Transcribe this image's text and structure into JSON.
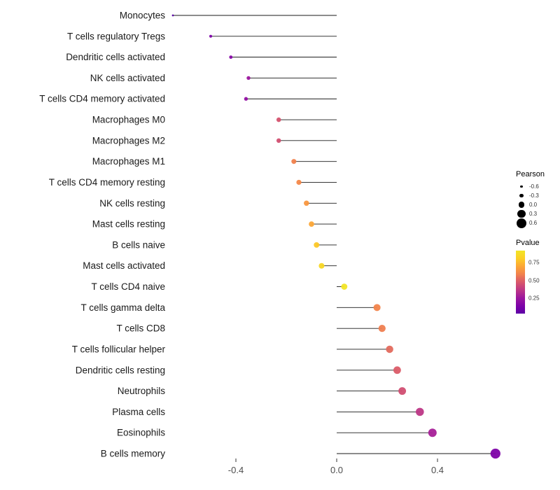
{
  "chart_data": {
    "type": "scatter",
    "subtype": "lollipop",
    "title": "",
    "xlabel": "",
    "ylabel": "",
    "xlim": [
      -0.68,
      0.7
    ],
    "grid": false,
    "x_ticks": [
      -0.4,
      0.0,
      0.4
    ],
    "x_tick_labels": [
      "-0.4",
      "0.0",
      "0.4"
    ],
    "points": [
      {
        "label": "Monocytes",
        "pearson": -0.65,
        "pvalue": 0.05,
        "color": "#5601a4"
      },
      {
        "label": "T cells regulatory  Tregs",
        "pearson": -0.5,
        "pvalue": 0.1,
        "color": "#7e03a8"
      },
      {
        "label": "Dendritic cells activated",
        "pearson": -0.42,
        "pvalue": 0.13,
        "color": "#8606a6"
      },
      {
        "label": "NK cells activated",
        "pearson": -0.35,
        "pvalue": 0.17,
        "color": "#9c179e"
      },
      {
        "label": "T cells CD4 memory activated",
        "pearson": -0.36,
        "pvalue": 0.15,
        "color": "#920fa3"
      },
      {
        "label": "Macrophages M0",
        "pearson": -0.23,
        "pvalue": 0.46,
        "color": "#d5536f"
      },
      {
        "label": "Macrophages M2",
        "pearson": -0.23,
        "pvalue": 0.45,
        "color": "#d24f71"
      },
      {
        "label": "Macrophages M1",
        "pearson": -0.17,
        "pvalue": 0.6,
        "color": "#f1814d"
      },
      {
        "label": "T cells CD4 memory resting",
        "pearson": -0.15,
        "pvalue": 0.62,
        "color": "#f48849"
      },
      {
        "label": "NK cells resting",
        "pearson": -0.12,
        "pvalue": 0.66,
        "color": "#f9973f"
      },
      {
        "label": "Mast cells resting",
        "pearson": -0.1,
        "pvalue": 0.71,
        "color": "#fca636"
      },
      {
        "label": "B cells naive",
        "pearson": -0.08,
        "pvalue": 0.78,
        "color": "#fcc726"
      },
      {
        "label": "Mast cells activated",
        "pearson": -0.06,
        "pvalue": 0.81,
        "color": "#f8d724"
      },
      {
        "label": "T cells CD4 naive",
        "pearson": 0.03,
        "pvalue": 0.86,
        "color": "#f2e526"
      },
      {
        "label": "T cells gamma delta",
        "pearson": 0.16,
        "pvalue": 0.61,
        "color": "#f2844b"
      },
      {
        "label": "T cells CD8",
        "pearson": 0.18,
        "pvalue": 0.58,
        "color": "#ef7e50"
      },
      {
        "label": "T cells follicular helper",
        "pearson": 0.21,
        "pvalue": 0.52,
        "color": "#e36a5d"
      },
      {
        "label": "Dendritic cells resting",
        "pearson": 0.24,
        "pvalue": 0.48,
        "color": "#db5c68"
      },
      {
        "label": "Neutrophils",
        "pearson": 0.26,
        "pvalue": 0.44,
        "color": "#d14e72"
      },
      {
        "label": "Plasma cells",
        "pearson": 0.33,
        "pvalue": 0.35,
        "color": "#bd3786"
      },
      {
        "label": "Eosinophils",
        "pearson": 0.38,
        "pvalue": 0.25,
        "color": "#a62098"
      },
      {
        "label": "B cells memory",
        "pearson": 0.63,
        "pvalue": 0.08,
        "color": "#7e03a8"
      }
    ],
    "legend": {
      "size": {
        "title": "Pearson",
        "entries": [
          {
            "label": "-0.6",
            "value": -0.6
          },
          {
            "label": "-0.3",
            "value": -0.3
          },
          {
            "label": "0.0",
            "value": 0.0
          },
          {
            "label": "0.3",
            "value": 0.3
          },
          {
            "label": "0.6",
            "value": 0.6
          }
        ]
      },
      "color": {
        "title": "Pvalue",
        "ticks": [
          "0.75",
          "0.50",
          "0.25"
        ],
        "gradient": [
          "#f2e526",
          "#fcce25",
          "#fca636",
          "#f1814d",
          "#d8576b",
          "#bd3786",
          "#9c179e",
          "#7e03a8",
          "#5c01a6"
        ]
      }
    },
    "stem_color": "#1a1a1a",
    "label_color": "#1a1a1a",
    "tick_label_color": "#4d4d4d"
  }
}
